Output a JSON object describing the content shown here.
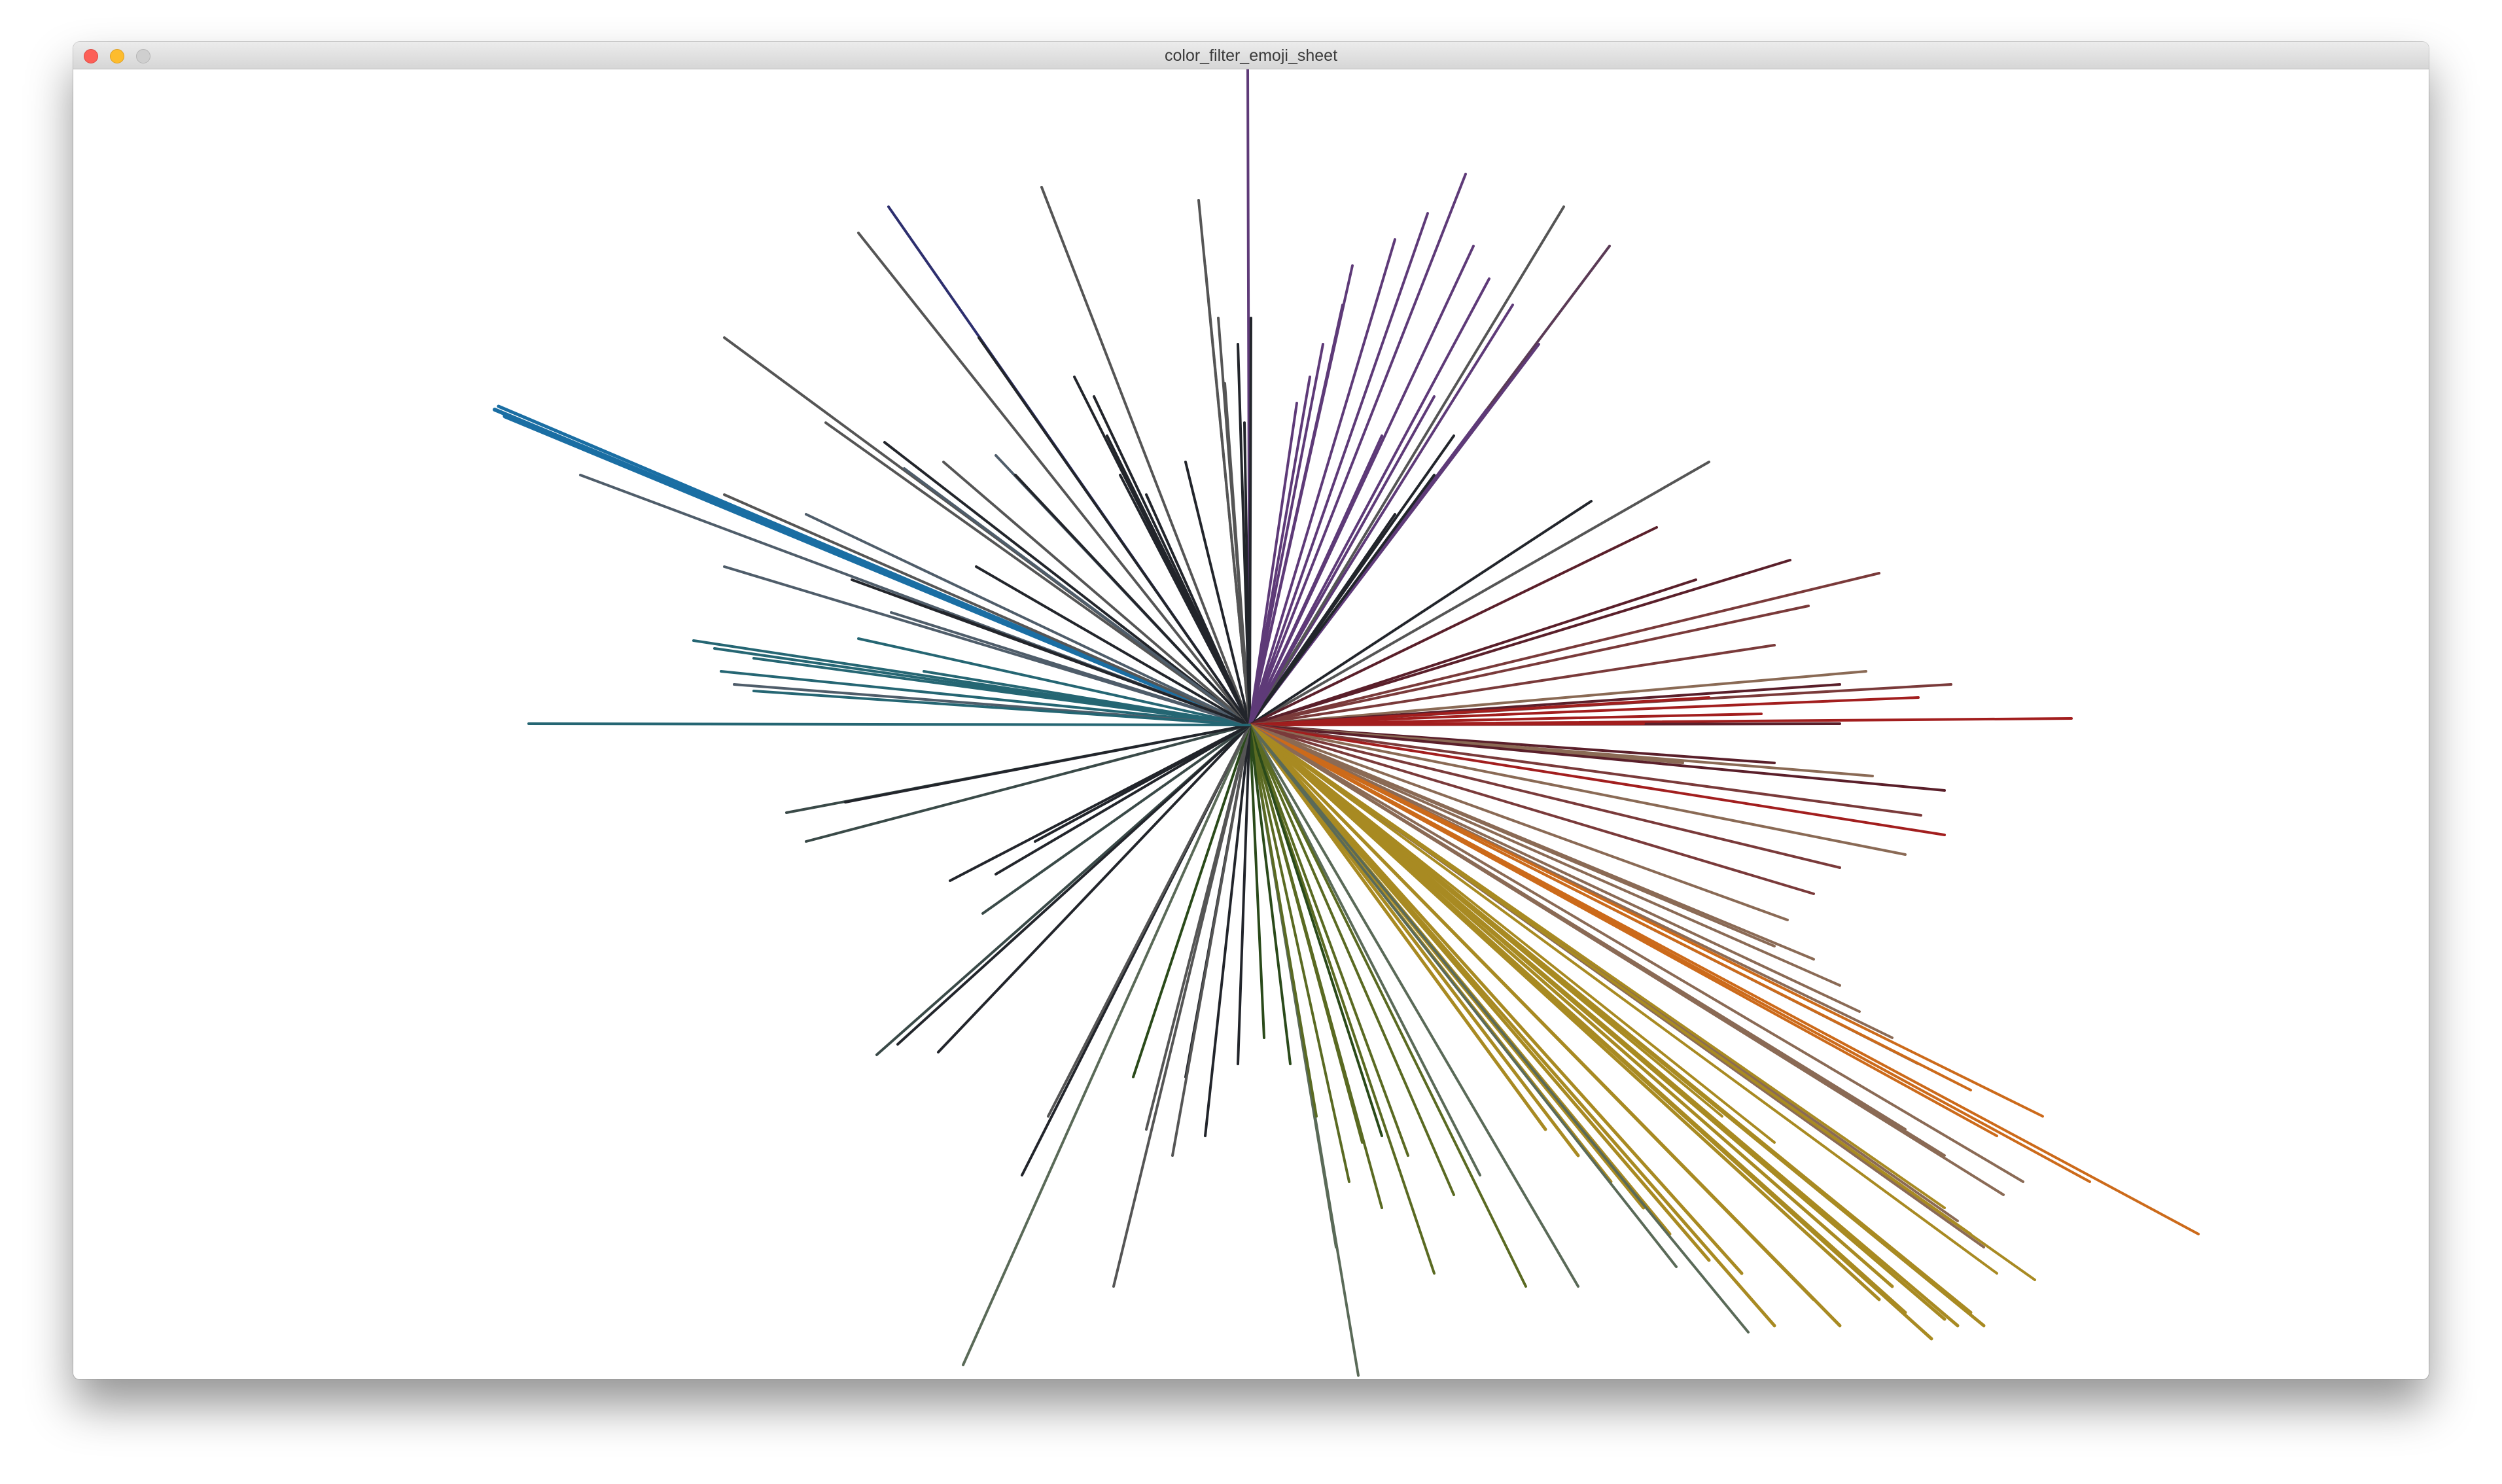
{
  "window": {
    "title": "color_filter_emoji_sheet"
  },
  "colors": {
    "blue": "#1a6ea3",
    "teal": "#256673",
    "navy": "#2d2f6e",
    "slate": "#4f5d6a",
    "gray": "#555555",
    "dark": "#22252b",
    "purple": "#5e3a78",
    "plum": "#5a3a55",
    "maroon": "#5a1f2a",
    "red": "#a21e1e",
    "rose": "#7a3a3a",
    "brown": "#8a6a55",
    "orange": "#cc6a1a",
    "gold": "#a88a22",
    "olive": "#5a6a22",
    "green": "#2a4a1a",
    "sage": "#5a6a58",
    "darkslate": "#3a4a48"
  }
}
